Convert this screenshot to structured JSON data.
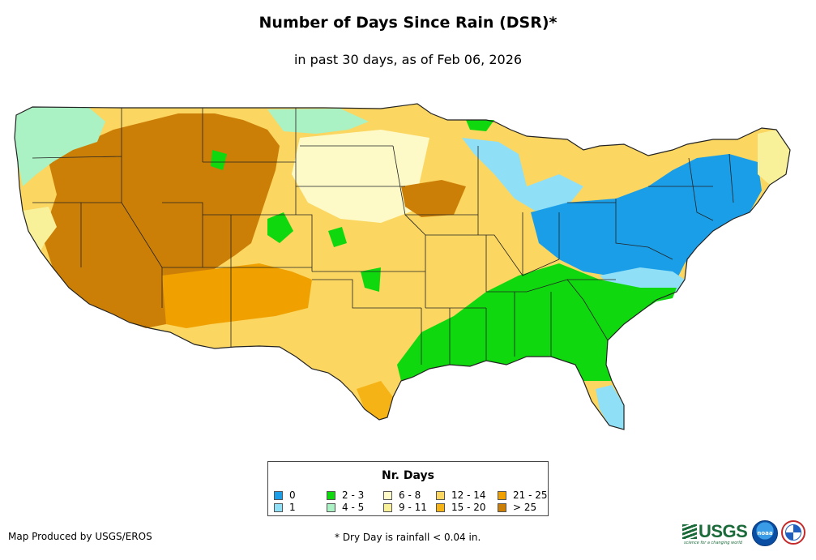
{
  "title": "Number of Days Since Rain (DSR)*",
  "subtitle": "in past 30 days, as of Feb 06, 2026",
  "legend": {
    "title": "Nr. Days",
    "items": [
      {
        "label": "0",
        "color": "#1a9ee8"
      },
      {
        "label": "1",
        "color": "#8fe0f7"
      },
      {
        "label": "2 - 3",
        "color": "#0fd80f"
      },
      {
        "label": "4 - 5",
        "color": "#aaf2c4"
      },
      {
        "label": "6 - 8",
        "color": "#fdfac8"
      },
      {
        "label": "9 - 11",
        "color": "#f8f19a"
      },
      {
        "label": "12 - 14",
        "color": "#fbd661"
      },
      {
        "label": "15 - 20",
        "color": "#f6b316"
      },
      {
        "label": "21 - 25",
        "color": "#f0a100"
      },
      {
        "label": "> 25",
        "color": "#cc7f07"
      }
    ]
  },
  "credit": "Map Produced by USGS/EROS",
  "footnote": "* Dry Day is rainfall < 0.04 in.",
  "logos": {
    "usgs": "USGS",
    "usgs_tagline": "science for a changing world",
    "noaa": "noaa",
    "nws_icon": "nws-logo"
  }
}
